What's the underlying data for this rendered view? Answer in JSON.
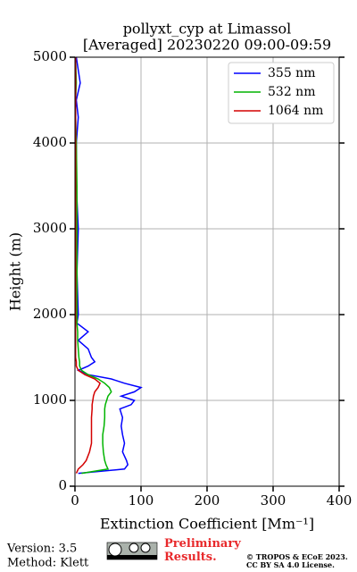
{
  "chart_data": {
    "type": "line",
    "title": "pollyxt_cyp at Limassol",
    "subtitle": "[Averaged] 20230220 09:00-09:59",
    "x_label": "Extinction Coefficient [Mm⁻¹]",
    "y_label": "Height (m)",
    "xlim": [
      0,
      400
    ],
    "xticks": [
      0,
      100,
      200,
      300,
      400
    ],
    "ylim": [
      0,
      5000
    ],
    "yticks": [
      0,
      1000,
      2000,
      3000,
      4000,
      5000
    ],
    "grid": true,
    "legend": "upper right",
    "heights": [
      150,
      200,
      250,
      300,
      400,
      500,
      600,
      700,
      800,
      900,
      950,
      1000,
      1050,
      1100,
      1150,
      1200,
      1250,
      1300,
      1350,
      1400,
      1450,
      1500,
      1600,
      1700,
      1800,
      1900,
      2000,
      2500,
      3000,
      3500,
      4000,
      4300,
      4500,
      4700,
      5000
    ],
    "series": [
      {
        "name": "355 nm",
        "color": "#0000ff",
        "values": [
          5,
          75,
          80,
          78,
          72,
          75,
          72,
          70,
          72,
          68,
          85,
          90,
          70,
          90,
          100,
          75,
          55,
          20,
          5,
          20,
          30,
          25,
          20,
          5,
          20,
          3,
          5,
          3,
          5,
          2,
          2,
          5,
          2,
          8,
          2
        ]
      },
      {
        "name": "532 nm",
        "color": "#00b400",
        "values": [
          10,
          50,
          47,
          45,
          43,
          42,
          42,
          44,
          45,
          45,
          46,
          48,
          50,
          55,
          52,
          45,
          35,
          20,
          10,
          7,
          7,
          6,
          5,
          4,
          4,
          3,
          3,
          3,
          3,
          3,
          2,
          1,
          1,
          2,
          1
        ]
      },
      {
        "name": "1064 nm",
        "color": "#d40000",
        "values": [
          2,
          5,
          12,
          17,
          22,
          25,
          25,
          25,
          25,
          26,
          26,
          27,
          28,
          30,
          35,
          38,
          30,
          15,
          5,
          2,
          2,
          1,
          1,
          1,
          1,
          1,
          1,
          1,
          1,
          1,
          1,
          1,
          1,
          1,
          1
        ]
      }
    ]
  },
  "footer": {
    "version": "Version: 3.5",
    "method": "Method: Klett",
    "notice": "Preliminary Results.",
    "copyright": "© TROPOS & ECoE 2023.",
    "license": "CC BY SA 4.0 License."
  }
}
